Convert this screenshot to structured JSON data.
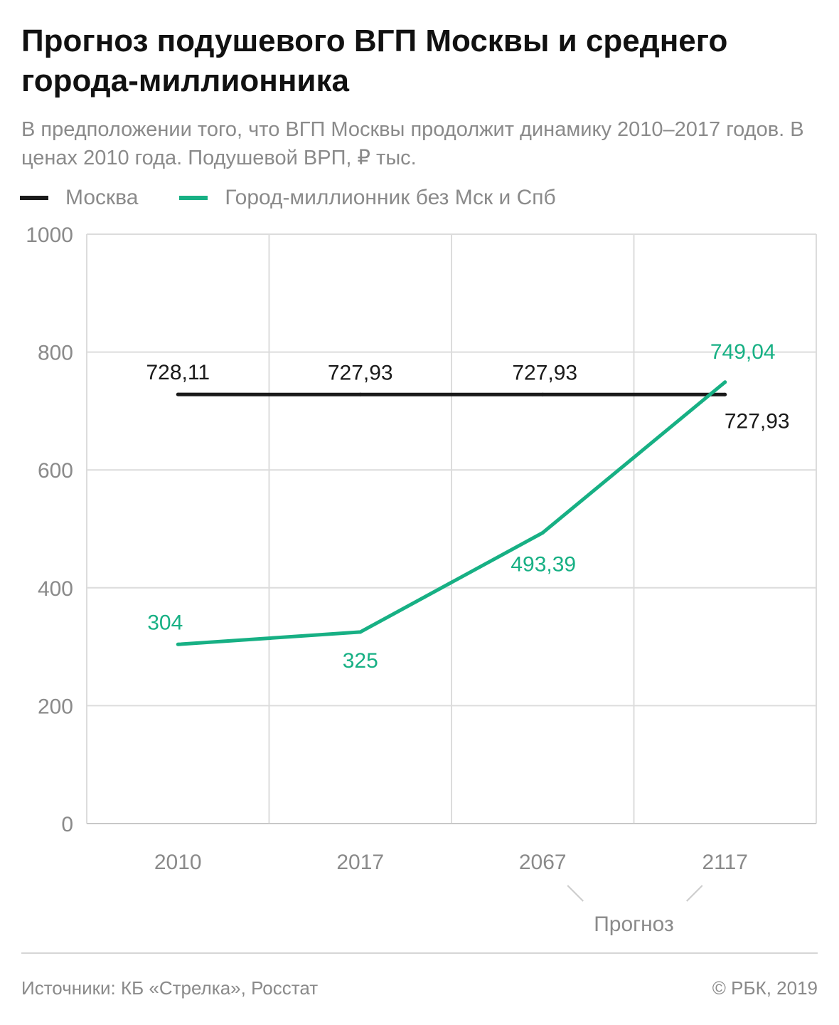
{
  "header": {
    "title": "Прогноз подушевого ВГП Москвы и среднего города-миллионника",
    "subtitle": "В предположении того, что ВГП Москвы продолжит динамику 2010–2017 годов. В ценах 2010 года. Подушевой ВРП, ₽ тыс."
  },
  "legend": [
    {
      "label": "Москва",
      "color": "#1a1a1a"
    },
    {
      "label": "Город-миллионник без Мск и Спб",
      "color": "#17b084"
    }
  ],
  "chart_data": {
    "type": "line",
    "title": "Прогноз подушевого ВГП Москвы и среднего города-миллионника",
    "ylabel": "Подушевой ВРП, ₽ тыс.",
    "xlabel": "",
    "categories": [
      "2010",
      "2017",
      "2067",
      "2117"
    ],
    "ylim": [
      0,
      1000
    ],
    "yticks": [
      0,
      200,
      400,
      600,
      800,
      1000
    ],
    "grid": true,
    "series": [
      {
        "name": "Москва",
        "color": "#1a1a1a",
        "values": [
          728.11,
          727.93,
          727.93,
          727.93
        ],
        "labels": [
          "728,11",
          "727,93",
          "727,93",
          "727,93"
        ]
      },
      {
        "name": "Город-миллионник без Мск и Спб",
        "color": "#17b084",
        "values": [
          304,
          325,
          493.39,
          749.04
        ],
        "labels": [
          "304",
          "325",
          "493,39",
          "749,04"
        ]
      }
    ],
    "annotation": {
      "text": "Прогноз",
      "applies_to": [
        "2067",
        "2117"
      ]
    }
  },
  "footer": {
    "source": "Источники: КБ «Стрелка», Росстат",
    "copyright": "© РБК, 2019"
  }
}
